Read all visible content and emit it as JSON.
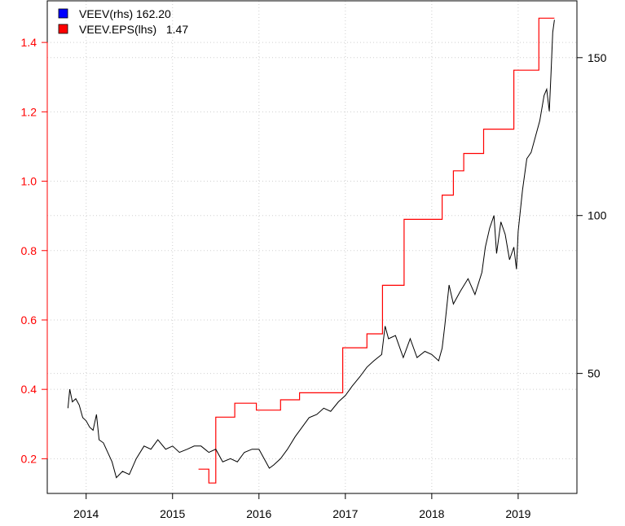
{
  "chart_data": {
    "type": "line",
    "x_ticks": [
      "2014",
      "2015",
      "2016",
      "2017",
      "2018",
      "2019"
    ],
    "x_range": [
      2013.55,
      2019.68
    ],
    "y_left": {
      "ticks": [
        "0.2",
        "0.4",
        "0.6",
        "0.8",
        "1.0",
        "1.2",
        "1.4"
      ],
      "range": [
        0.1,
        1.52
      ],
      "color": "#ff0000"
    },
    "y_right": {
      "ticks": [
        "50",
        "100",
        "150"
      ],
      "range": [
        12,
        168
      ],
      "color": "#000000"
    },
    "grid": true,
    "legend_position": "top-left",
    "legend": [
      {
        "label": "VEEV(rhs) 162.20",
        "color": "#0000ff"
      },
      {
        "label": "VEEV.EPS(lhs)   1.47",
        "color": "#ff0000"
      }
    ],
    "series": [
      {
        "name": "VEEV.EPS(lhs)",
        "axis": "left",
        "color": "#ff0000",
        "step": true,
        "x": [
          2015.3,
          2015.42,
          2015.5,
          2015.72,
          2015.97,
          2016.25,
          2016.47,
          2016.97,
          2017.25,
          2017.43,
          2017.68,
          2018.12,
          2018.25,
          2018.37,
          2018.6,
          2018.95,
          2019.24,
          2019.42
        ],
        "y": [
          0.17,
          0.13,
          0.32,
          0.36,
          0.34,
          0.37,
          0.39,
          0.52,
          0.56,
          0.7,
          0.89,
          0.96,
          1.03,
          1.08,
          1.15,
          1.32,
          1.47,
          1.47
        ]
      },
      {
        "name": "VEEV(rhs)",
        "axis": "right",
        "color": "#000000",
        "x": [
          2013.79,
          2013.81,
          2013.84,
          2013.88,
          2013.92,
          2013.96,
          2014.0,
          2014.04,
          2014.08,
          2014.12,
          2014.15,
          2014.2,
          2014.25,
          2014.3,
          2014.35,
          2014.42,
          2014.5,
          2014.58,
          2014.67,
          2014.75,
          2014.83,
          2014.92,
          2015.0,
          2015.08,
          2015.17,
          2015.25,
          2015.33,
          2015.42,
          2015.5,
          2015.58,
          2015.67,
          2015.75,
          2015.83,
          2015.92,
          2016.0,
          2016.08,
          2016.12,
          2016.17,
          2016.25,
          2016.33,
          2016.42,
          2016.5,
          2016.58,
          2016.67,
          2016.75,
          2016.83,
          2016.92,
          2017.0,
          2017.08,
          2017.17,
          2017.25,
          2017.33,
          2017.42,
          2017.46,
          2017.5,
          2017.58,
          2017.67,
          2017.75,
          2017.83,
          2017.92,
          2018.0,
          2018.08,
          2018.12,
          2018.15,
          2018.2,
          2018.25,
          2018.33,
          2018.42,
          2018.5,
          2018.58,
          2018.62,
          2018.67,
          2018.72,
          2018.75,
          2018.8,
          2018.85,
          2018.9,
          2018.95,
          2018.98,
          2019.0,
          2019.05,
          2019.1,
          2019.15,
          2019.2,
          2019.25,
          2019.3,
          2019.33,
          2019.36,
          2019.38,
          2019.4,
          2019.42
        ],
        "y": [
          39,
          45,
          41,
          42,
          40,
          36,
          35,
          33,
          32,
          37,
          29,
          28,
          25,
          22,
          17,
          19,
          18,
          23,
          27,
          26,
          29,
          26,
          27,
          25,
          26,
          27,
          27,
          25,
          26,
          22,
          23,
          22,
          25,
          26,
          26,
          22,
          20,
          21,
          23,
          26,
          30,
          33,
          36,
          37,
          39,
          38,
          41,
          43,
          46,
          49,
          52,
          54,
          56,
          65,
          61,
          62,
          55,
          61,
          55,
          57,
          56,
          54,
          58,
          65,
          78,
          72,
          76,
          80,
          75,
          82,
          90,
          96,
          100,
          88,
          98,
          94,
          86,
          90,
          83,
          95,
          108,
          118,
          120,
          125,
          130,
          138,
          140,
          133,
          145,
          158,
          162
        ]
      }
    ]
  }
}
